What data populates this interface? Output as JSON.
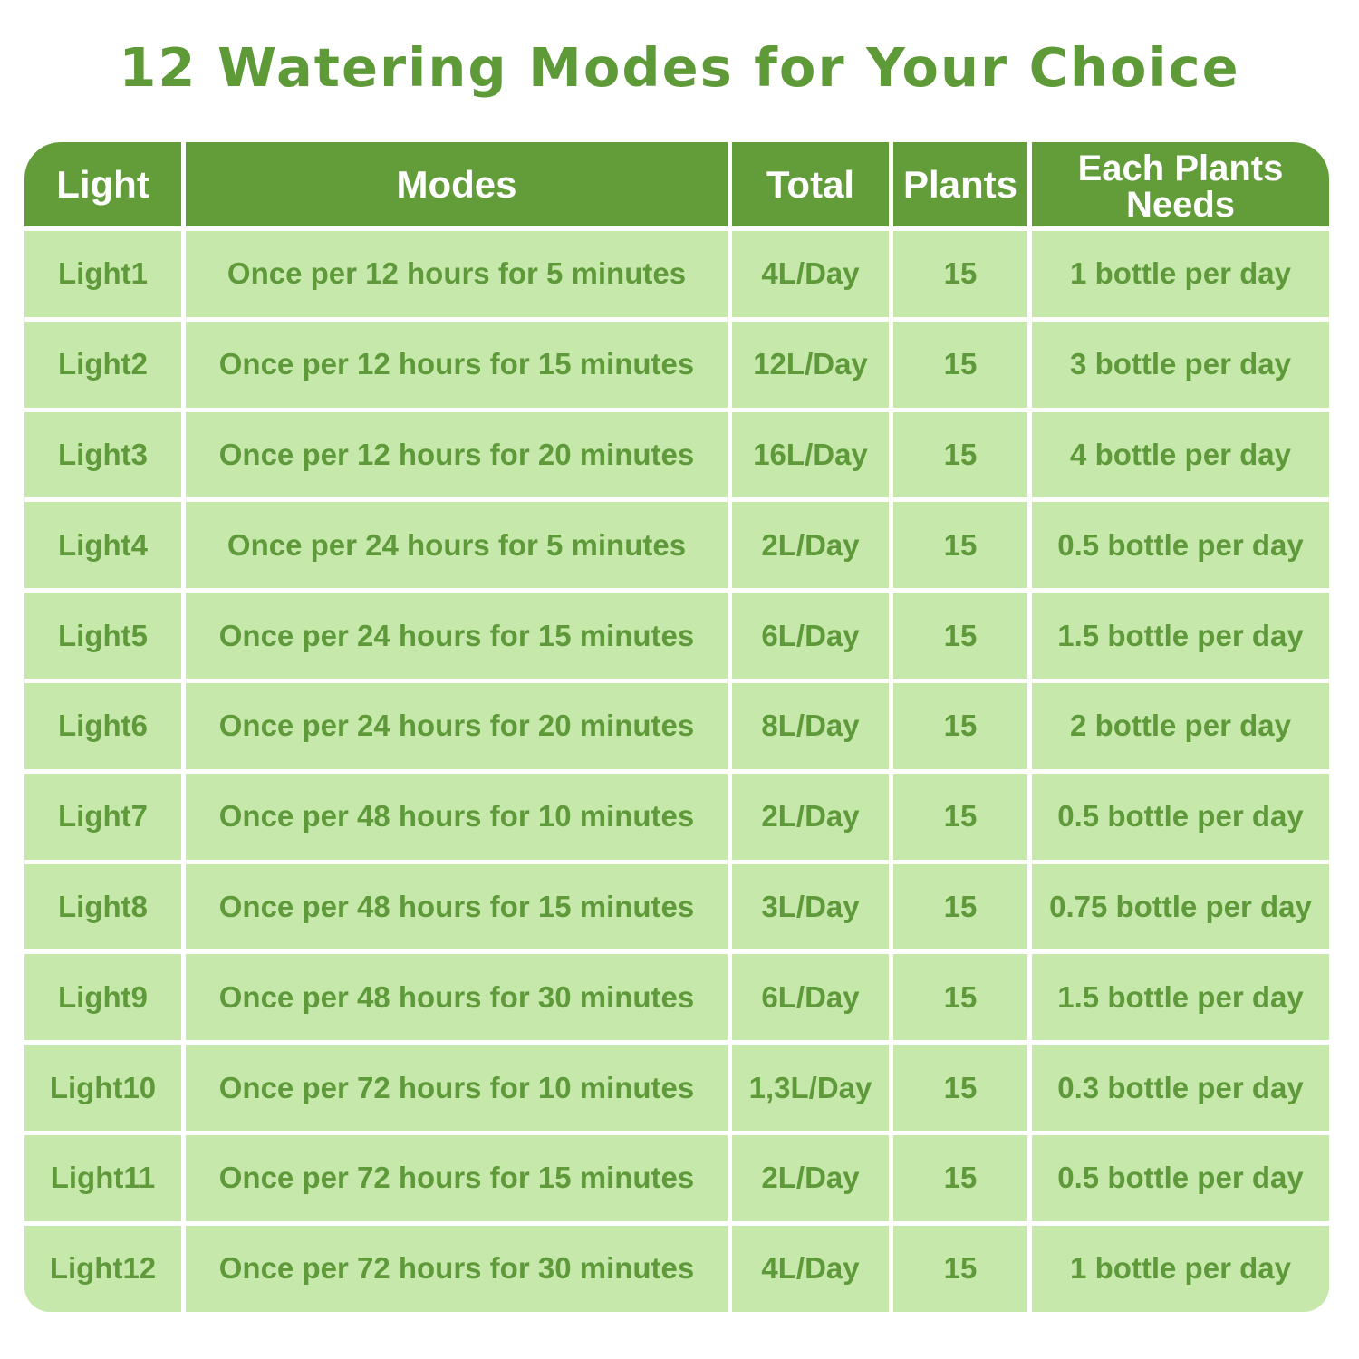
{
  "title": "12 Watering Modes for Your Choice",
  "colors": {
    "header_bg": "#629d3a",
    "cell_bg": "#c6e8aa",
    "text": "#5e9a3a",
    "header_text": "#ffffff"
  },
  "table": {
    "headers": [
      "Light",
      "Modes",
      "Total",
      "Plants",
      "Each Plants Needs"
    ],
    "rows": [
      [
        "Light1",
        "Once per 12 hours for 5 minutes",
        "4L/Day",
        "15",
        "1 bottle per day"
      ],
      [
        "Light2",
        "Once per 12 hours for 15 minutes",
        "12L/Day",
        "15",
        "3 bottle per day"
      ],
      [
        "Light3",
        "Once per 12 hours for 20 minutes",
        "16L/Day",
        "15",
        "4 bottle per day"
      ],
      [
        "Light4",
        "Once per 24 hours for 5 minutes",
        "2L/Day",
        "15",
        "0.5 bottle per day"
      ],
      [
        "Light5",
        "Once per 24 hours for 15 minutes",
        "6L/Day",
        "15",
        "1.5 bottle per day"
      ],
      [
        "Light6",
        "Once per 24 hours for 20 minutes",
        "8L/Day",
        "15",
        "2 bottle per day"
      ],
      [
        "Light7",
        "Once per 48 hours for 10 minutes",
        "2L/Day",
        "15",
        "0.5 bottle per day"
      ],
      [
        "Light8",
        "Once per 48 hours for 15 minutes",
        "3L/Day",
        "15",
        "0.75 bottle per day"
      ],
      [
        "Light9",
        "Once per 48 hours for 30 minutes",
        "6L/Day",
        "15",
        "1.5 bottle per day"
      ],
      [
        "Light10",
        "Once per 72 hours for 10 minutes",
        "1,3L/Day",
        "15",
        "0.3 bottle per day"
      ],
      [
        "Light11",
        "Once per 72 hours for 15 minutes",
        "2L/Day",
        "15",
        "0.5 bottle per day"
      ],
      [
        "Light12",
        "Once per 72 hours for 30 minutes",
        "4L/Day",
        "15",
        "1 bottle per day"
      ]
    ]
  }
}
